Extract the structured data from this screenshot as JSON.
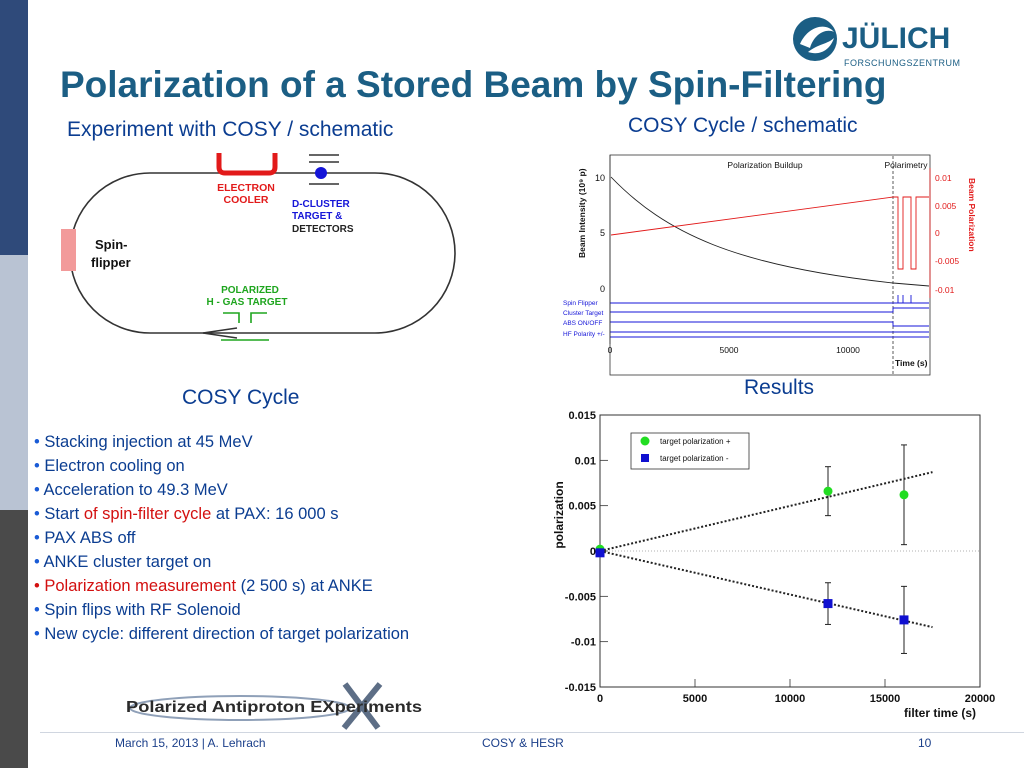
{
  "slide": {
    "title": "Polarization of a Stored Beam by Spin-Filtering",
    "logo": {
      "name": "JÜLICH",
      "tagline": "FORSCHUNGSZENTRUM"
    },
    "colors": {
      "title": "#1b5e84",
      "text": "#0b3d91",
      "highlight": "#d31010",
      "sidebar_dark": "#2f4a7a",
      "sidebar_light": "#b9c3d3"
    }
  },
  "schematic": {
    "heading": "Experiment with COSY / schematic",
    "electron_cooler": [
      "ELECTRON",
      "COOLER"
    ],
    "cluster_target": [
      "D-CLUSTER",
      "TARGET &",
      "DETECTORS"
    ],
    "spin_flipper": [
      "Spin-",
      "flipper"
    ],
    "gas_target": [
      "POLARIZED",
      "H - GAS TARGET"
    ]
  },
  "cycle_chart": {
    "heading": "COSY Cycle / schematic",
    "phase_buildup": "Polarization Buildup",
    "phase_polarimetry": "Polarimetry",
    "ylabel_left": "Beam Intensity (10⁹ p)",
    "ylabel_right": "Beam Polarization",
    "xlabel": "Time (s)",
    "left_ticks": [
      "10",
      "5",
      "0"
    ],
    "right_ticks": [
      "0.01",
      "0.005",
      "0",
      "-0.005",
      "-0.01"
    ],
    "x_ticks": [
      "0",
      "5000",
      "10000"
    ],
    "signals": [
      "Spin Flipper",
      "Cluster Target",
      "ABS ON/OFF",
      "HF Polarity +/-"
    ]
  },
  "cosy_cycle": {
    "heading": "COSY Cycle",
    "items": [
      {
        "before": "Stacking injection at 45 MeV",
        "hl": "",
        "after": "",
        "red_bullet": false
      },
      {
        "before": "Electron cooling on",
        "hl": "",
        "after": "",
        "red_bullet": false
      },
      {
        "before": "Acceleration to 49.3 MeV",
        "hl": "",
        "after": "",
        "red_bullet": false
      },
      {
        "before": "Start ",
        "hl": "of spin-filter cycle",
        "after": " at PAX: 16 000 s",
        "red_bullet": false
      },
      {
        "before": "PAX ABS off",
        "hl": "",
        "after": "",
        "red_bullet": false
      },
      {
        "before": "ANKE cluster target on",
        "hl": "",
        "after": "",
        "red_bullet": false
      },
      {
        "before": "",
        "hl": "Polarization measurement",
        "after": " (2 500 s) at ANKE",
        "red_bullet": true
      },
      {
        "before": "Spin flips with RF Solenoid",
        "hl": "",
        "after": "",
        "red_bullet": false
      },
      {
        "before": "New cycle: different  direction of target polarization",
        "hl": "",
        "after": "",
        "red_bullet": false
      }
    ]
  },
  "results": {
    "heading": "Results"
  },
  "chart_data": {
    "type": "scatter",
    "xlabel": "filter time (s)",
    "ylabel": "polarization",
    "xlim": [
      0,
      20000
    ],
    "ylim": [
      -0.015,
      0.015
    ],
    "x_ticks": [
      "0",
      "5000",
      "10000",
      "15000",
      "20000"
    ],
    "y_ticks": [
      "0.015",
      "0.01",
      "0.005",
      "0",
      "-0.005",
      "-0.01",
      "-0.015"
    ],
    "legend_position": "top-left",
    "series": [
      {
        "name": "target polarization +",
        "color": "#22dd22",
        "marker": "circle",
        "x": [
          0,
          12000,
          16000
        ],
        "y": [
          0.0002,
          0.0066,
          0.0062
        ],
        "err": [
          0.0003,
          0.0027,
          0.0055
        ],
        "fit": {
          "x": [
            0,
            17500
          ],
          "y": [
            0.0,
            0.0087
          ]
        }
      },
      {
        "name": "target polarization -",
        "color": "#1010d0",
        "marker": "square",
        "x": [
          0,
          12000,
          16000
        ],
        "y": [
          -0.0002,
          -0.0058,
          -0.0076
        ],
        "err": [
          0.0003,
          0.0023,
          0.0037
        ],
        "fit": {
          "x": [
            0,
            17500
          ],
          "y": [
            0.0,
            -0.0084
          ]
        }
      }
    ]
  },
  "footer": {
    "date": "March 15, 2013",
    "author": "A. Lehrach",
    "sep": "|",
    "center": "COSY & HESR",
    "page": "10",
    "pax_logo": "Polarized Antiproton EXperiments"
  }
}
